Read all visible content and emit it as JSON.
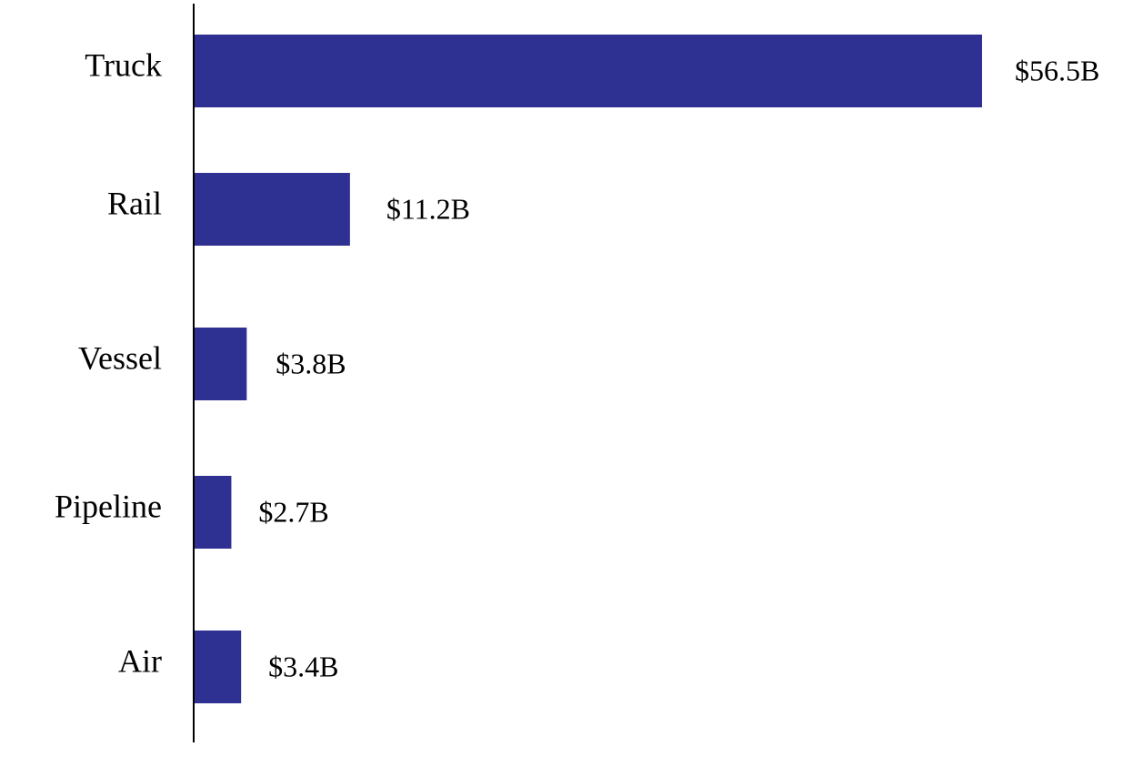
{
  "chart_data": {
    "type": "bar",
    "orientation": "horizontal",
    "categories": [
      "Truck",
      "Rail",
      "Vessel",
      "Pipeline",
      "Air"
    ],
    "values": [
      56.5,
      11.2,
      3.8,
      2.7,
      3.4
    ],
    "value_labels": [
      "$56.5B",
      "$11.2B",
      "$3.8B",
      "$2.7B",
      "$3.4B"
    ],
    "title": "",
    "xlabel": "",
    "ylabel": "",
    "xlim": [
      0,
      56.5
    ],
    "grid": false,
    "legend": "none",
    "bar_color": "#2e3192"
  }
}
